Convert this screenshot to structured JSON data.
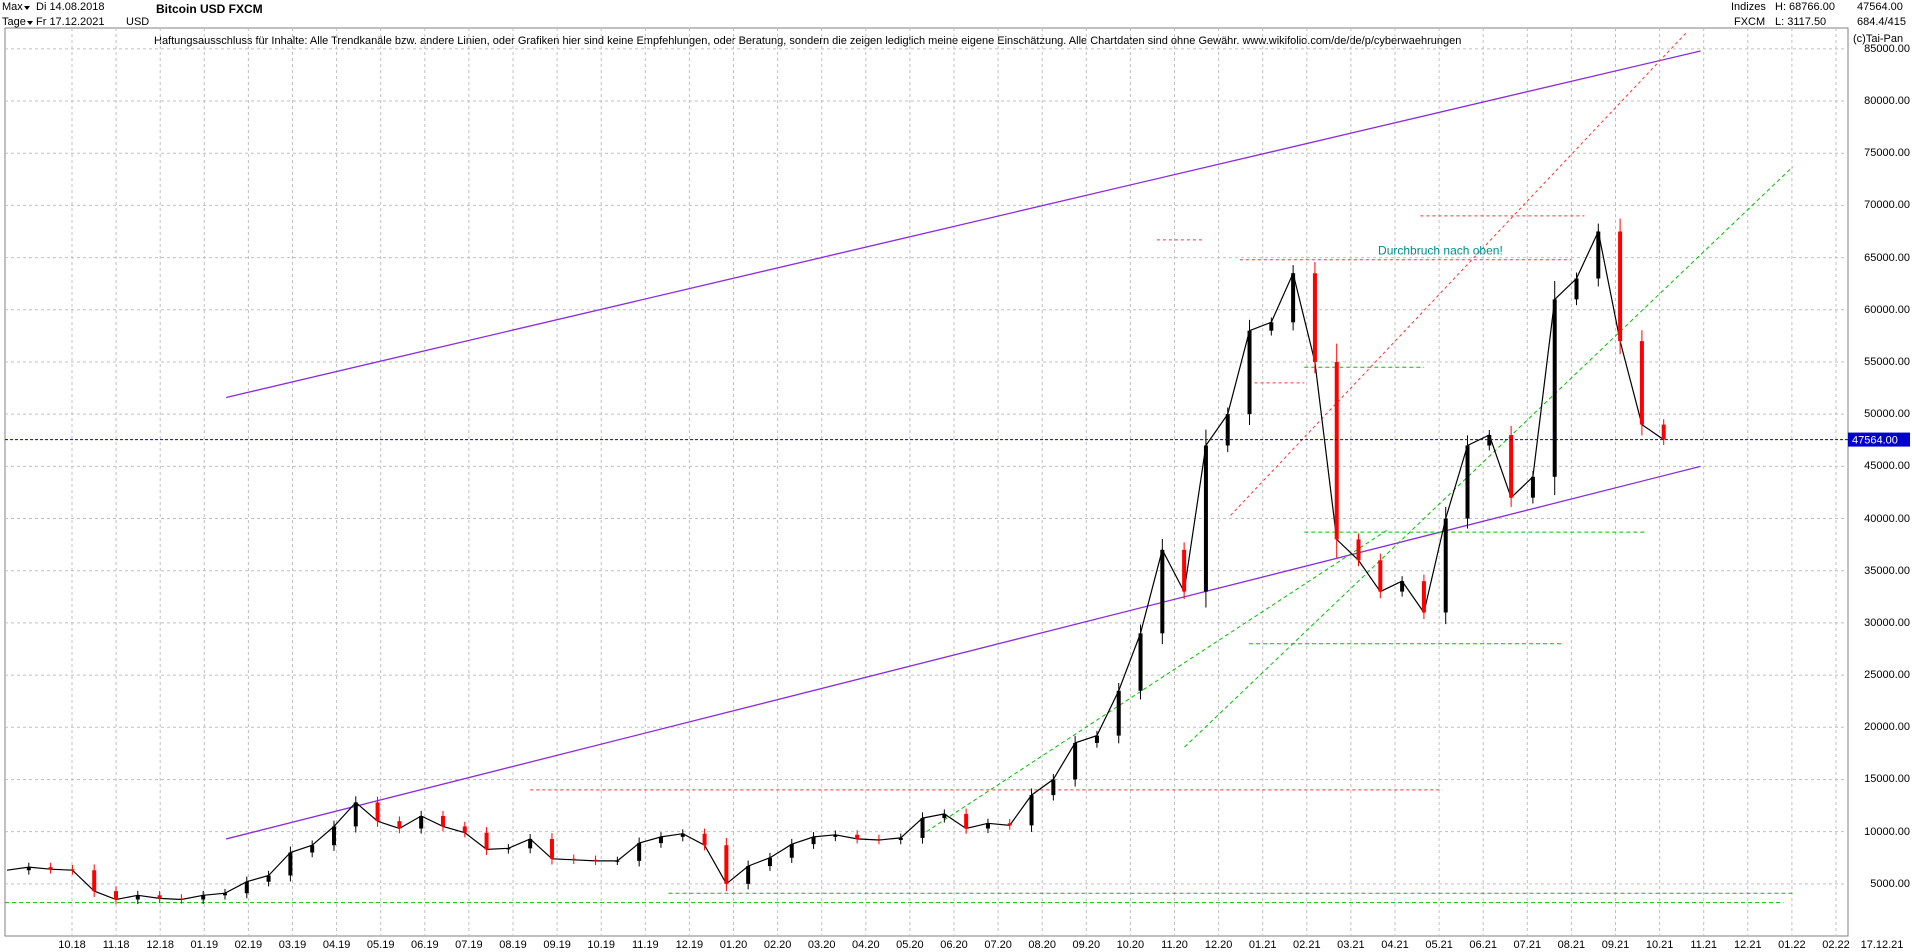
{
  "header": {
    "range_selector": "Max",
    "interval_selector": "Tage",
    "date_from": "Di 14.08.2018",
    "date_to": "Fr 17.12.2021",
    "currency": "USD",
    "title": "Bitcoin USD FXCM",
    "disclaimer": "Haftungsausschluss für Inhalte: Alle Trendkanäle bzw. andere Linien, oder Grafiken hier sind keine Empfehlungen, oder Beratung, sondern die zeigen lediglich meine eigene Einschätzung. Alle Chartdaten sind ohne Gewähr.  www.wikifolio.com/de/de/p/cyberwaehrungen",
    "indices_label": "Indizes",
    "exchange_label": "FXCM",
    "high_label": "H: 68766.00",
    "low_label": "L: 3117.50",
    "last_value": "47564.00",
    "volume_info": "684.4/415",
    "copyright": "(c)Tai-Pan"
  },
  "colors": {
    "price_up": "#000000",
    "price_down": "#ff0000",
    "channel": "#8a2be2",
    "green_lines": "#00c000",
    "red_dotted": "#ff3030",
    "current_price_line": "#0000cc",
    "grid": "#c0c0c0",
    "annotation": "#008b8b"
  },
  "chart_data": {
    "type": "line",
    "title": "Bitcoin USD FXCM",
    "ylim": [
      0,
      87000
    ],
    "y_ticks": [
      "5000.00",
      "10000.00",
      "15000.00",
      "20000.00",
      "25000.00",
      "30000.00",
      "35000.00",
      "40000.00",
      "45000.00",
      "50000.00",
      "55000.00",
      "60000.00",
      "65000.00",
      "70000.00",
      "75000.00",
      "80000.00",
      "85000.00"
    ],
    "x_ticks": [
      "10.18",
      "11.18",
      "12.18",
      "01.19",
      "02.19",
      "03.19",
      "04.19",
      "05.19",
      "06.19",
      "07.19",
      "08.19",
      "09.19",
      "10.19",
      "11.19",
      "12.19",
      "01.20",
      "02.20",
      "03.20",
      "04.20",
      "05.20",
      "06.20",
      "07.20",
      "08.20",
      "09.20",
      "10.20",
      "11.20",
      "12.20",
      "01.21",
      "02.21",
      "03.21",
      "04.21",
      "05.21",
      "06.21",
      "07.21",
      "08.21",
      "09.21",
      "10.21",
      "11.21",
      "12.21",
      "01.22",
      "02.22"
    ],
    "last_date_label": "17.12.21",
    "current_price": 47564,
    "current_price_label": "47564.00",
    "series": [
      {
        "values": [
          [
            "08.18",
            6300
          ],
          [
            "09.18",
            6600
          ],
          [
            "10.18",
            6400
          ],
          [
            "11.18",
            6300
          ],
          [
            "11.18b",
            4300
          ],
          [
            "12.18",
            3500
          ],
          [
            "12.18b",
            3900
          ],
          [
            "01.19",
            3600
          ],
          [
            "02.19",
            3500
          ],
          [
            "03.19",
            3900
          ],
          [
            "04.19",
            4100
          ],
          [
            "04.19b",
            5200
          ],
          [
            "05.19",
            5800
          ],
          [
            "05.19b",
            8000
          ],
          [
            "06.19",
            8700
          ],
          [
            "06.19b",
            10500
          ],
          [
            "07.19",
            12800
          ],
          [
            "07.19b",
            11000
          ],
          [
            "08.19",
            10300
          ],
          [
            "08.19b",
            11500
          ],
          [
            "09.19",
            10500
          ],
          [
            "09.19b",
            9900
          ],
          [
            "10.19",
            8300
          ],
          [
            "10.19b",
            8400
          ],
          [
            "11.19",
            9300
          ],
          [
            "11.19b",
            7400
          ],
          [
            "12.19",
            7300
          ],
          [
            "12.19b",
            7200
          ],
          [
            "01.20",
            7200
          ],
          [
            "01.20b",
            8900
          ],
          [
            "02.20",
            9500
          ],
          [
            "02.20b",
            9800
          ],
          [
            "03.20",
            8700
          ],
          [
            "03.20b",
            5000
          ],
          [
            "04.20",
            6700
          ],
          [
            "04.20b",
            7500
          ],
          [
            "05.20",
            8800
          ],
          [
            "05.20b",
            9500
          ],
          [
            "06.20",
            9700
          ],
          [
            "06.20b",
            9300
          ],
          [
            "07.20",
            9200
          ],
          [
            "07.20b",
            9400
          ],
          [
            "08.20",
            11300
          ],
          [
            "08.20b",
            11700
          ],
          [
            "09.20",
            10300
          ],
          [
            "09.20b",
            10800
          ],
          [
            "10.20",
            10600
          ],
          [
            "10.20b",
            13500
          ],
          [
            "11.20",
            15000
          ],
          [
            "11.20b",
            18500
          ],
          [
            "12.20",
            19200
          ],
          [
            "12.20b",
            23500
          ],
          [
            "01.21",
            29000
          ],
          [
            "01.21b",
            37000
          ],
          [
            "02.21",
            33000
          ],
          [
            "02.21b",
            47000
          ],
          [
            "03.21",
            50000
          ],
          [
            "03.21b",
            58000
          ],
          [
            "04.21",
            58800
          ],
          [
            "04.21b",
            63500
          ],
          [
            "05.21",
            55000
          ],
          [
            "05.21b",
            38000
          ],
          [
            "06.21",
            36000
          ],
          [
            "06.21b",
            33000
          ],
          [
            "07.21",
            34000
          ],
          [
            "07.21b",
            31000
          ],
          [
            "08.21",
            40000
          ],
          [
            "08.21b",
            47000
          ],
          [
            "09.21",
            48000
          ],
          [
            "09.21b",
            42000
          ],
          [
            "10.21",
            44000
          ],
          [
            "10.21b",
            61000
          ],
          [
            "11.21",
            63000
          ],
          [
            "11.21b",
            67500
          ],
          [
            "12.21",
            57000
          ],
          [
            "12.21b",
            49000
          ],
          [
            "12.21c",
            47564
          ]
        ]
      }
    ],
    "annotations": [
      {
        "text": "Durchbruch nach oben!"
      }
    ]
  },
  "overlays": {
    "channel_upper": [
      [
        120,
        51600
      ],
      [
        920,
        84800
      ]
    ],
    "channel_lower": [
      [
        120,
        9300
      ],
      [
        920,
        45000
      ]
    ],
    "green_fan_1": [
      [
        640,
        18100
      ],
      [
        970,
        73700
      ]
    ],
    "green_fan_2": [
      [
        500,
        10000
      ],
      [
        750,
        38900
      ]
    ],
    "green_h_1": [
      [
        705,
        38700
      ],
      [
        890,
        38700
      ]
    ],
    "green_h_2": [
      [
        675,
        28000
      ],
      [
        845,
        28000
      ]
    ],
    "green_h_3": [
      [
        705,
        54500
      ],
      [
        770,
        54500
      ]
    ],
    "green_h_4": [
      [
        360,
        4100
      ],
      [
        970,
        4100
      ]
    ],
    "green_h_5": [
      [
        0,
        3200
      ],
      [
        965,
        3200
      ]
    ],
    "red_dotted_up": [
      [
        665,
        40300
      ],
      [
        912,
        86500
      ]
    ],
    "red_h_1": [
      [
        285,
        14000
      ],
      [
        780,
        14000
      ]
    ],
    "red_h_2": [
      [
        670,
        64800
      ],
      [
        850,
        64800
      ]
    ],
    "red_h_3": [
      [
        768,
        69000
      ],
      [
        857,
        69000
      ]
    ],
    "red_h_4": [
      [
        678,
        53000
      ],
      [
        705,
        53000
      ]
    ],
    "red_h_5": [
      [
        625,
        66700
      ],
      [
        650,
        66700
      ]
    ]
  }
}
